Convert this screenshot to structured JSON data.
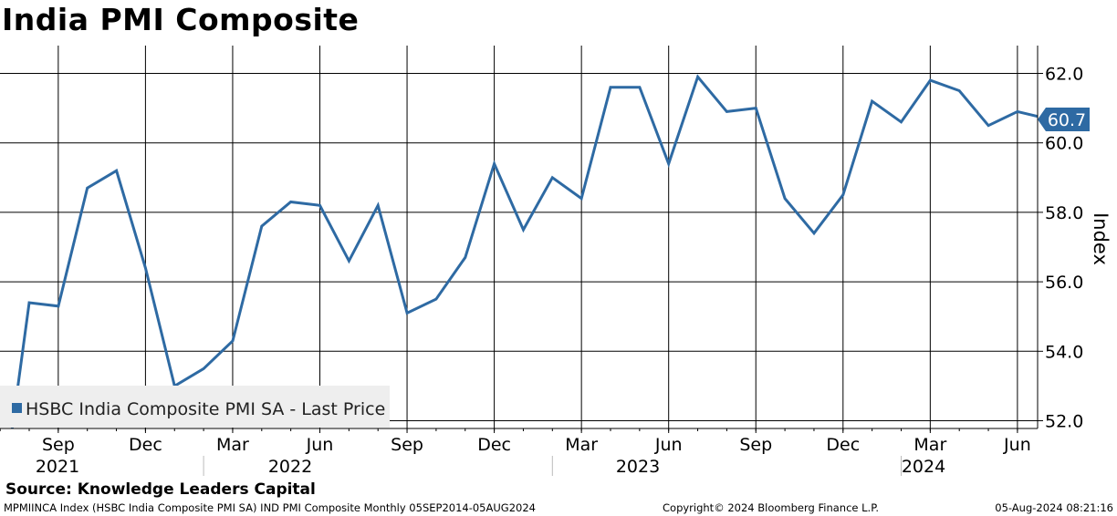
{
  "title": "India PMI Composite",
  "source": "Source: Knowledge Leaders Capital",
  "footer": {
    "left": "MPMIINCA Index (HSBC India Composite PMI SA) IND PMI Composite  Monthly 05SEP2014-05AUG2024",
    "center": "Copyright© 2024 Bloomberg Finance L.P.",
    "right": "05-Aug-2024 08:21:16"
  },
  "colors": {
    "line": "#2e6aa3",
    "grid": "#000000",
    "legend_bg": "#eeeeee"
  },
  "chart_data": {
    "type": "line",
    "ylabel": "Index",
    "ylim": [
      51.8,
      62.8
    ],
    "yticks": [
      "62.0",
      "60.0",
      "58.0",
      "56.0",
      "54.0",
      "52.0"
    ],
    "grid": true,
    "legend_position": "bottom-left",
    "last_value_label": "60.7",
    "x_month_ticks": [
      "Sep",
      "Dec",
      "Mar",
      "Jun",
      "Sep",
      "Dec",
      "Mar",
      "Jun",
      "Sep",
      "Dec",
      "Mar",
      "Jun"
    ],
    "x_year_labels": [
      "2021",
      "2022",
      "2023",
      "2024"
    ],
    "series": [
      {
        "name": "HSBC India Composite PMI SA - Last Price",
        "x": [
          "2021-07",
          "2021-08",
          "2021-09",
          "2021-10",
          "2021-11",
          "2021-12",
          "2022-01",
          "2022-02",
          "2022-03",
          "2022-04",
          "2022-05",
          "2022-06",
          "2022-07",
          "2022-08",
          "2022-09",
          "2022-10",
          "2022-11",
          "2022-12",
          "2023-01",
          "2023-02",
          "2023-03",
          "2023-04",
          "2023-05",
          "2023-06",
          "2023-07",
          "2023-08",
          "2023-09",
          "2023-10",
          "2023-11",
          "2023-12",
          "2024-01",
          "2024-02",
          "2024-03",
          "2024-04",
          "2024-05",
          "2024-06",
          "2024-07"
        ],
        "values": [
          49.2,
          55.4,
          55.3,
          58.7,
          59.2,
          56.4,
          53.0,
          53.5,
          54.3,
          57.6,
          58.3,
          58.2,
          56.6,
          58.2,
          55.1,
          55.5,
          56.7,
          59.4,
          57.5,
          59.0,
          58.4,
          61.6,
          61.6,
          59.4,
          61.9,
          60.9,
          61.0,
          58.4,
          57.4,
          58.5,
          61.2,
          60.6,
          61.8,
          61.5,
          60.5,
          60.9,
          60.7
        ]
      }
    ]
  }
}
